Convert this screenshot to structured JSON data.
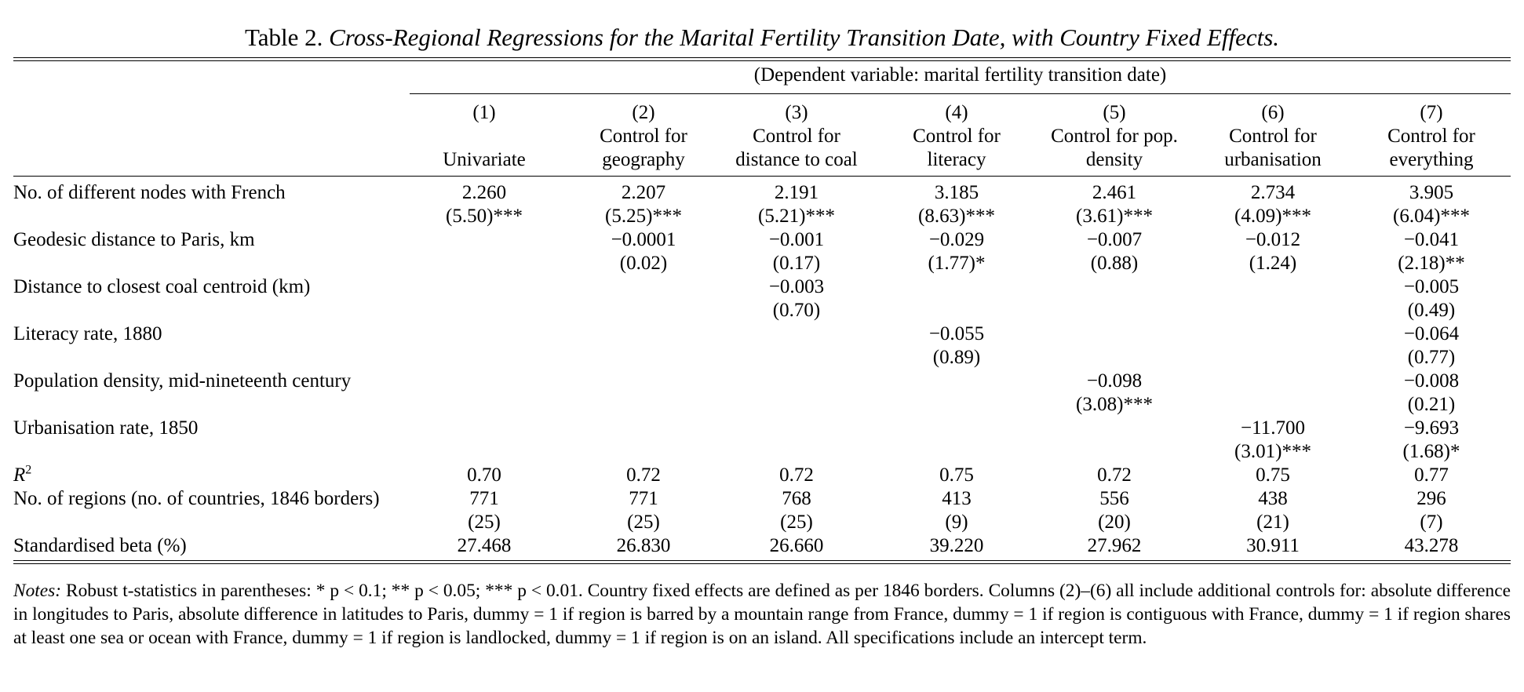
{
  "caption": {
    "prefix": "Table 2.",
    "title": "Cross-Regional Regressions for the Marital Fertility Transition Date, with Country Fixed Effects."
  },
  "dependent_variable": "(Dependent variable: marital fertility transition date)",
  "columns": [
    {
      "number": "(1)",
      "label_line1": "",
      "label_line2": "Univariate"
    },
    {
      "number": "(2)",
      "label_line1": "Control for",
      "label_line2": "geography"
    },
    {
      "number": "(3)",
      "label_line1": "Control for",
      "label_line2": "distance to coal"
    },
    {
      "number": "(4)",
      "label_line1": "Control for",
      "label_line2": "literacy"
    },
    {
      "number": "(5)",
      "label_line1": "Control for pop.",
      "label_line2": "density"
    },
    {
      "number": "(6)",
      "label_line1": "Control for",
      "label_line2": "urbanisation"
    },
    {
      "number": "(7)",
      "label_line1": "Control for",
      "label_line2": "everything"
    }
  ],
  "rows": [
    {
      "label": "No. of different nodes with French",
      "coef": [
        "2.260",
        "2.207",
        "2.191",
        "3.185",
        "2.461",
        "2.734",
        "3.905"
      ],
      "tstat": [
        "(5.50)***",
        "(5.25)***",
        "(5.21)***",
        "(8.63)***",
        "(3.61)***",
        "(4.09)***",
        "(6.04)***"
      ]
    },
    {
      "label": "Geodesic distance to Paris, km",
      "coef": [
        "",
        "−0.0001",
        "−0.001",
        "−0.029",
        "−0.007",
        "−0.012",
        "−0.041"
      ],
      "tstat": [
        "",
        "(0.02)",
        "(0.17)",
        "(1.77)*",
        "(0.88)",
        "(1.24)",
        "(2.18)**"
      ]
    },
    {
      "label": "Distance to closest coal centroid (km)",
      "coef": [
        "",
        "",
        "−0.003",
        "",
        "",
        "",
        "−0.005"
      ],
      "tstat": [
        "",
        "",
        "(0.70)",
        "",
        "",
        "",
        "(0.49)"
      ]
    },
    {
      "label": "Literacy rate, 1880",
      "coef": [
        "",
        "",
        "",
        "−0.055",
        "",
        "",
        "−0.064"
      ],
      "tstat": [
        "",
        "",
        "",
        "(0.89)",
        "",
        "",
        "(0.77)"
      ]
    },
    {
      "label": "Population density, mid-nineteenth century",
      "coef": [
        "",
        "",
        "",
        "",
        "−0.098",
        "",
        "−0.008"
      ],
      "tstat": [
        "",
        "",
        "",
        "",
        "(3.08)***",
        "",
        "(0.21)"
      ]
    },
    {
      "label": "Urbanisation rate, 1850",
      "coef": [
        "",
        "",
        "",
        "",
        "",
        "−11.700",
        "−9.693"
      ],
      "tstat": [
        "",
        "",
        "",
        "",
        "",
        "(3.01)***",
        "(1.68)*"
      ]
    }
  ],
  "r2": {
    "label_base": "R",
    "label_sup": "2",
    "values": [
      "0.70",
      "0.72",
      "0.72",
      "0.75",
      "0.72",
      "0.75",
      "0.77"
    ]
  },
  "regions": {
    "label": "No. of regions (no. of countries, 1846 borders)",
    "values": [
      "771",
      "771",
      "768",
      "413",
      "556",
      "438",
      "296"
    ],
    "countries": [
      "(25)",
      "(25)",
      "(25)",
      "(9)",
      "(20)",
      "(21)",
      "(7)"
    ]
  },
  "beta": {
    "label": "Standardised beta (%)",
    "values": [
      "27.468",
      "26.830",
      "26.660",
      "39.220",
      "27.962",
      "30.911",
      "43.278"
    ]
  },
  "notes": {
    "label": "Notes:",
    "text": "Robust t-statistics in parentheses: * p < 0.1; ** p < 0.05; *** p < 0.01. Country fixed effects are defined as per 1846 borders. Columns (2)–(6) all include additional controls for: absolute difference in longitudes to Paris, absolute difference in latitudes to Paris, dummy = 1 if region is barred by a mountain range from France, dummy = 1 if region is contiguous with France, dummy = 1 if region shares at least one sea or ocean with France, dummy = 1 if region is landlocked, dummy = 1 if region is on an island. All specifications include an intercept term."
  }
}
